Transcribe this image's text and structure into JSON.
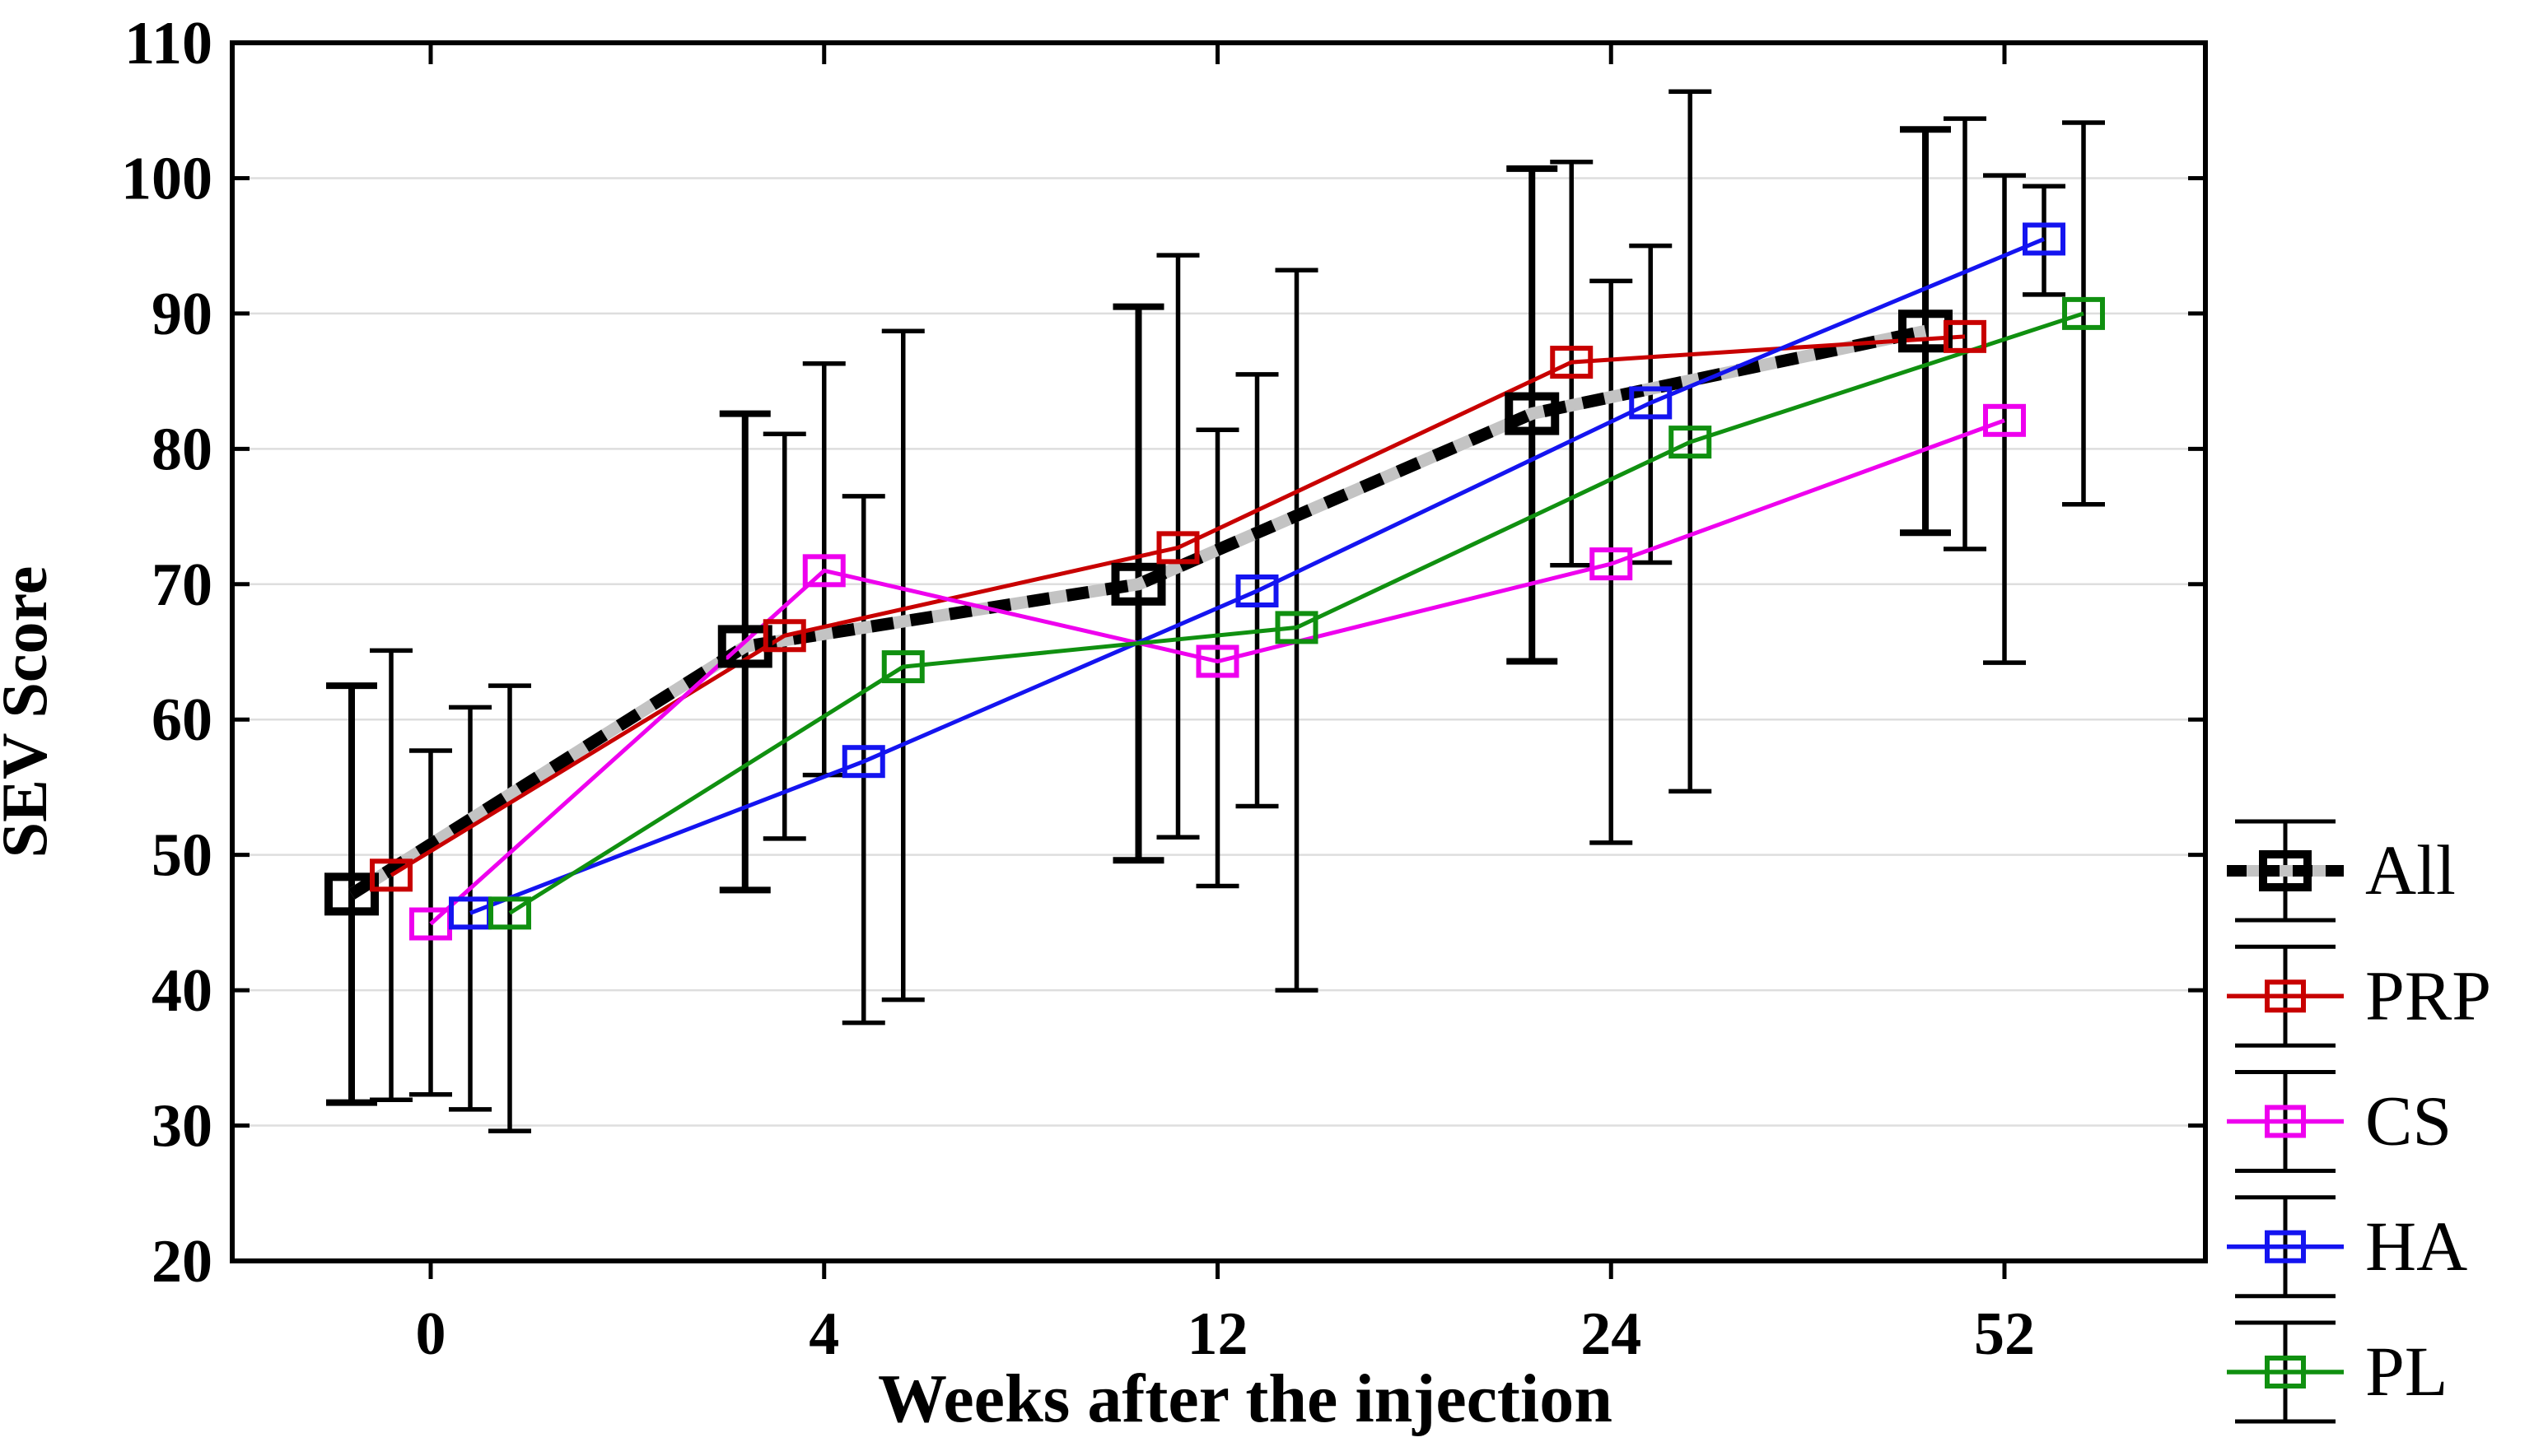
{
  "figure": {
    "background": "#ffffff",
    "frame_color": "#000000",
    "grid_color": "#dedede"
  },
  "chart_data": {
    "type": "line",
    "title": "",
    "xlabel": "Weeks after the injection",
    "ylabel": "SEV Score",
    "categories": [
      "0",
      "4",
      "12",
      "24",
      "52"
    ],
    "x_axis_type": "equally spaced categories",
    "ylim": [
      20,
      110
    ],
    "y_ticks": [
      20,
      30,
      40,
      50,
      60,
      70,
      80,
      90,
      100,
      110
    ],
    "gridline_values": [
      30,
      40,
      50,
      60,
      70,
      80,
      90,
      100
    ],
    "grid": "horizontal",
    "legend_position": "right",
    "error_bars": "vertical black whiskers with end caps around each mean",
    "series": [
      {
        "name": "All",
        "color": "#000000",
        "underlay_color": "#c3c3c3",
        "line_style": "thick black dashes over gray",
        "marker": "open-square-bold",
        "values": [
          47.1,
          65.4,
          70.0,
          82.6,
          88.7
        ],
        "err_low": [
          31.7,
          47.4,
          49.6,
          64.3,
          73.8
        ],
        "err_high": [
          62.5,
          82.6,
          90.5,
          100.7,
          103.6
        ]
      },
      {
        "name": "PRP",
        "color": "#c80000",
        "line_style": "solid",
        "marker": "open-square",
        "values": [
          48.5,
          66.2,
          72.7,
          86.4,
          88.3
        ],
        "err_low": [
          31.9,
          51.2,
          51.3,
          71.4,
          72.6
        ],
        "err_high": [
          65.1,
          81.1,
          94.3,
          101.2,
          104.4
        ]
      },
      {
        "name": "CS",
        "color": "#ee00ee",
        "line_style": "solid",
        "marker": "open-square",
        "values": [
          44.9,
          71.0,
          64.3,
          71.5,
          82.1
        ],
        "err_low": [
          32.3,
          55.9,
          47.7,
          50.9,
          64.2
        ],
        "err_high": [
          57.7,
          86.3,
          81.4,
          92.4,
          100.2
        ]
      },
      {
        "name": "HA",
        "color": "#1414f0",
        "line_style": "solid",
        "marker": "open-square",
        "values": [
          45.7,
          56.9,
          69.5,
          83.4,
          95.5
        ],
        "err_low": [
          31.2,
          37.6,
          53.6,
          71.6,
          91.4
        ],
        "err_high": [
          60.9,
          76.5,
          85.5,
          95.0,
          99.4
        ]
      },
      {
        "name": "PL",
        "color": "#109010",
        "line_style": "solid",
        "marker": "open-square",
        "values": [
          45.7,
          63.9,
          66.8,
          80.5,
          90.0
        ],
        "err_low": [
          29.6,
          39.3,
          40.0,
          54.7,
          75.9
        ],
        "err_high": [
          62.5,
          88.7,
          93.2,
          106.4,
          104.1
        ]
      }
    ]
  },
  "legend": {
    "items": [
      {
        "label": "All"
      },
      {
        "label": "PRP"
      },
      {
        "label": "CS"
      },
      {
        "label": "HA"
      },
      {
        "label": "PL"
      }
    ],
    "glyph": "error bar with caps, series line and open square marker"
  }
}
